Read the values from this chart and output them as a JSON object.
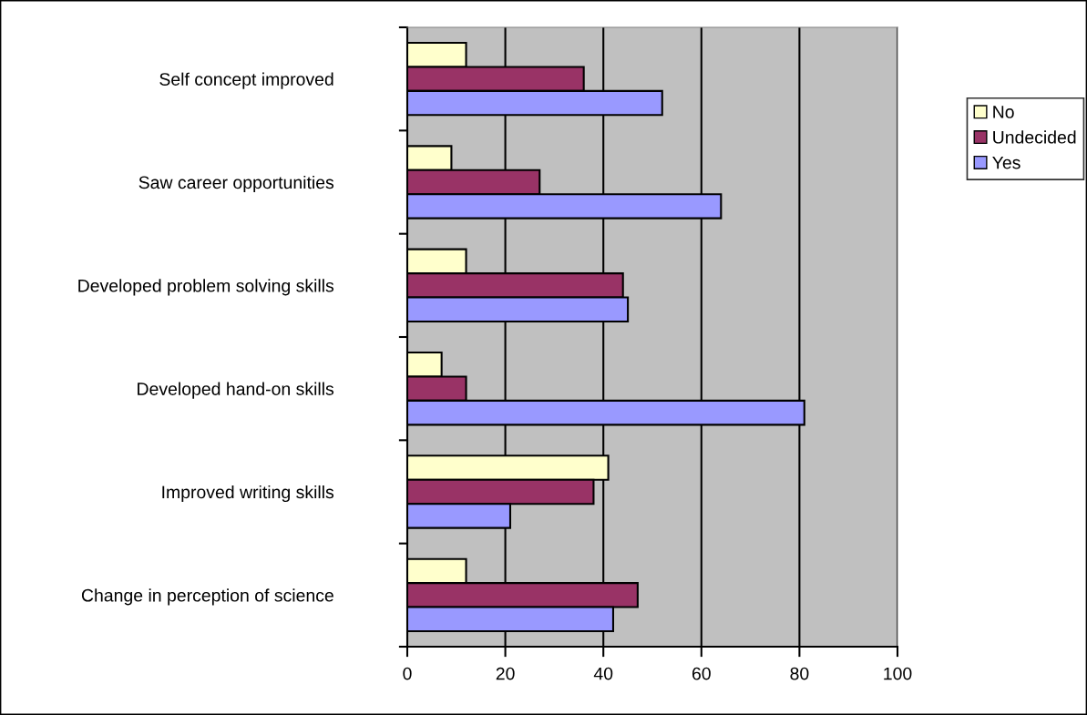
{
  "chart_data": {
    "type": "bar",
    "orientation": "horizontal",
    "categories": [
      "Self concept improved",
      "Saw career opportunities",
      "Developed problem solving skills",
      "Developed hand-on skills",
      "Improved writing skills",
      "Change in perception of science"
    ],
    "series": [
      {
        "name": "No",
        "color": "#ffffcc",
        "values": [
          12,
          9,
          12,
          7,
          41,
          12
        ]
      },
      {
        "name": "Undecided",
        "color": "#993366",
        "values": [
          36,
          27,
          44,
          12,
          38,
          47
        ]
      },
      {
        "name": "Yes",
        "color": "#9999ff",
        "values": [
          52,
          64,
          45,
          81,
          21,
          42
        ]
      }
    ],
    "xlim": [
      0,
      100
    ],
    "xticks": [
      0,
      20,
      40,
      60,
      80,
      100
    ],
    "grid": "x",
    "legend": "right"
  }
}
